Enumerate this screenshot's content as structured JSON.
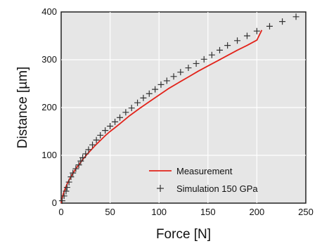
{
  "chart_data": {
    "type": "line",
    "title": "",
    "xlabel": "Force [N]",
    "ylabel": "Distance [µm]",
    "xlim": [
      0,
      250
    ],
    "ylim": [
      0,
      400
    ],
    "xticks": [
      0,
      50,
      100,
      150,
      200,
      250
    ],
    "yticks": [
      0,
      100,
      200,
      300,
      400
    ],
    "grid": true,
    "legend_position": "bottom-right",
    "series": [
      {
        "name": "Measurement",
        "kind": "line",
        "color": "#e2231a",
        "x": [
          0,
          1,
          2,
          4,
          6,
          8,
          10,
          12,
          15,
          18,
          22,
          26,
          30,
          35,
          40,
          45,
          50,
          55,
          60,
          70,
          80,
          90,
          100,
          110,
          120,
          130,
          140,
          150,
          160,
          170,
          180,
          190,
          200,
          205
        ],
        "y": [
          0,
          10,
          18,
          30,
          40,
          48,
          55,
          62,
          72,
          80,
          91,
          101,
          110,
          121,
          131,
          141,
          150,
          158,
          166,
          183,
          198,
          212,
          226,
          240,
          252,
          264,
          276,
          287,
          298,
          309,
          320,
          330,
          341,
          362
        ]
      },
      {
        "name": "Simulation 150 GPa",
        "kind": "scatter",
        "marker": "+",
        "color": "#333333",
        "x": [
          1,
          3,
          5,
          6,
          8,
          10,
          12,
          15,
          18,
          20,
          22,
          25,
          28,
          32,
          36,
          40,
          45,
          50,
          55,
          60,
          66,
          72,
          78,
          84,
          90,
          96,
          102,
          108,
          115,
          122,
          130,
          138,
          146,
          154,
          162,
          170,
          180,
          190,
          200,
          213,
          226,
          240
        ],
        "y": [
          5,
          15,
          25,
          33,
          44,
          55,
          63,
          72,
          80,
          88,
          95,
          103,
          112,
          122,
          132,
          142,
          152,
          161,
          170,
          179,
          190,
          199,
          210,
          220,
          229,
          238,
          248,
          256,
          265,
          274,
          283,
          292,
          301,
          310,
          320,
          330,
          340,
          350,
          360,
          370,
          380,
          390
        ]
      }
    ]
  }
}
